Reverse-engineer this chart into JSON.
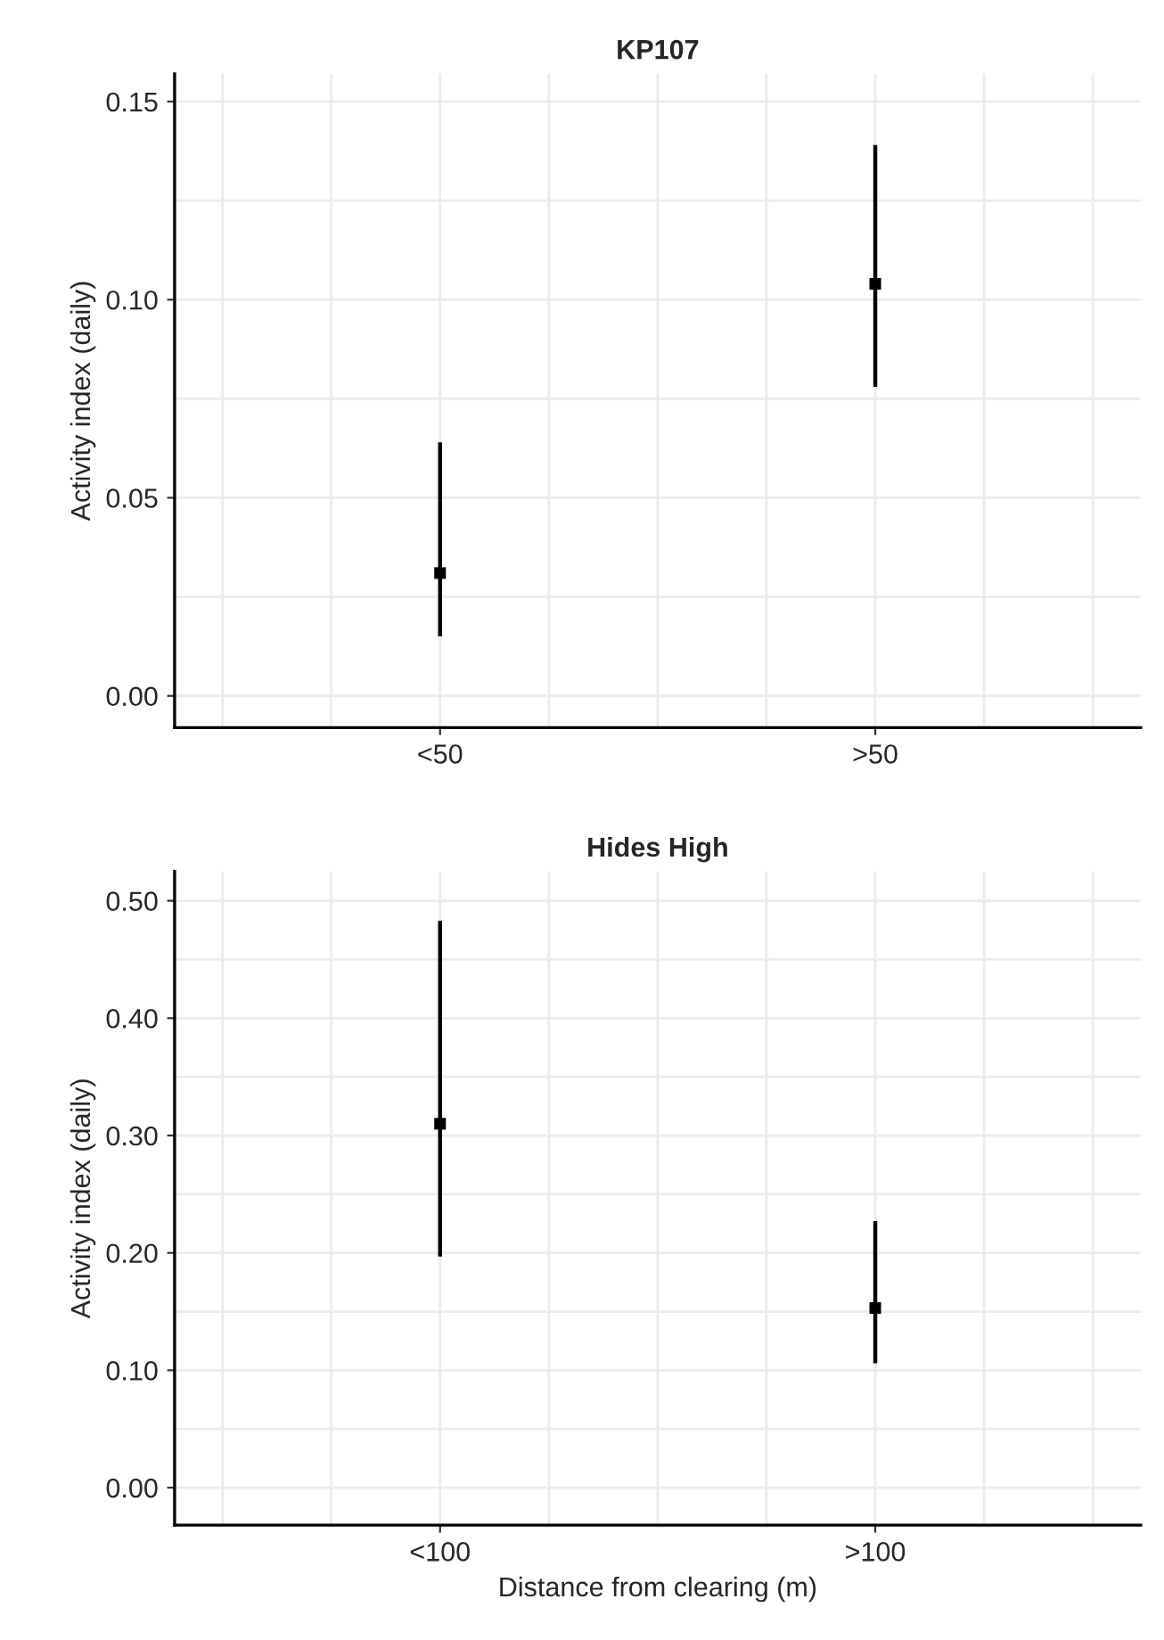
{
  "chart_data": [
    {
      "type": "scatter",
      "title": "KP107",
      "ylabel": "Activity index (daily)",
      "categories": [
        "<50",
        ">50"
      ],
      "series": [
        {
          "color": "#000000",
          "values": [
            0.031,
            0.104
          ],
          "errors": [
            [
              0.015,
              0.064
            ],
            [
              0.078,
              0.139
            ]
          ]
        }
      ],
      "marker": "square",
      "ylim": [
        -0.008,
        0.157
      ],
      "yticks": [
        {
          "value": 0,
          "label": "0.00"
        },
        0.05,
        {
          "value": 0.1,
          "label": "0.10"
        },
        0.15
      ],
      "grid": true
    },
    {
      "type": "scatter",
      "title": "Hides High",
      "ylabel": "Activity index (daily)",
      "xlabel": "Distance from clearing (m)",
      "categories": [
        "<100",
        ">100"
      ],
      "series": [
        {
          "color": "#000000",
          "values": [
            0.31,
            0.153
          ],
          "errors": [
            [
              0.197,
              0.483
            ],
            [
              0.106,
              0.227
            ]
          ]
        }
      ],
      "marker": "square",
      "ylim": [
        -0.032,
        0.525
      ],
      "yticks": [
        {
          "value": 0,
          "label": "0.00"
        },
        {
          "value": 0.1,
          "label": "0.10"
        },
        {
          "value": 0.2,
          "label": "0.20"
        },
        {
          "value": 0.3,
          "label": "0.30"
        },
        {
          "value": 0.4,
          "label": "0.40"
        },
        {
          "value": 0.5,
          "label": "0.50"
        }
      ],
      "grid": true
    }
  ]
}
